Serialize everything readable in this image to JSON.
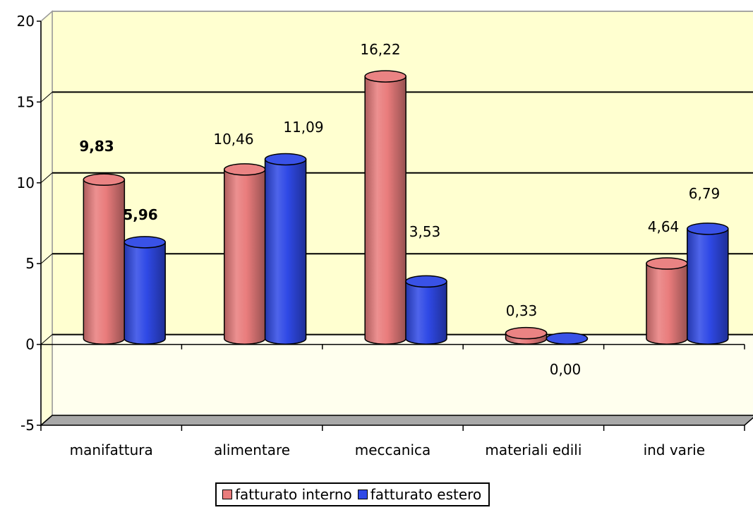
{
  "chart_data": {
    "type": "bar",
    "title": "",
    "xlabel": "",
    "ylabel": "",
    "ylim": [
      -5,
      20
    ],
    "yticks": [
      "-5",
      "0",
      "5",
      "10",
      "15",
      "20"
    ],
    "categories": [
      "manifattura",
      "alimentare",
      "meccanica",
      "materiali edili",
      "ind varie"
    ],
    "series": [
      {
        "name": "fatturato interno",
        "color": "#e97c7c",
        "values": [
          9.83,
          10.46,
          16.22,
          0.33,
          4.64
        ],
        "labels": [
          "9,83",
          "10,46",
          "16,22",
          "0,33",
          "4,64"
        ],
        "bold": [
          true,
          false,
          false,
          false,
          false
        ]
      },
      {
        "name": "fatturato estero",
        "color": "#2f49e6",
        "values": [
          5.96,
          11.09,
          3.53,
          0.0,
          6.79
        ],
        "labels": [
          "5,96",
          "11,09",
          "3,53",
          "0,00",
          "6,79"
        ],
        "bold": [
          true,
          false,
          false,
          false,
          false
        ]
      }
    ],
    "grid": true,
    "legend": "bottom",
    "style": "3d-cylinder",
    "background_color": "#ffffd0",
    "floor_color": "#a8a8a8"
  }
}
